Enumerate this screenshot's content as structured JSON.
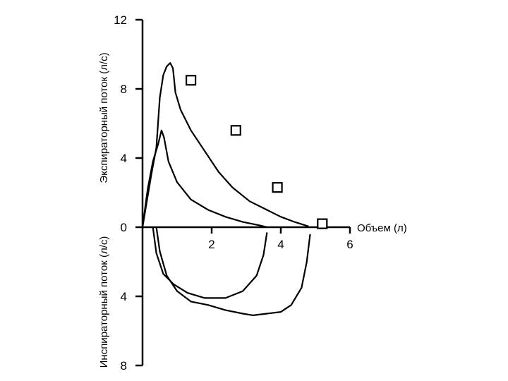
{
  "chart_data": {
    "type": "line",
    "x": {
      "label": "Объем (л)",
      "range": [
        0,
        6
      ],
      "ticks": [
        "2",
        "4",
        "6"
      ]
    },
    "y_top": {
      "label": "Экспираторный поток (л/с)",
      "range": [
        0,
        12
      ],
      "ticks": [
        "0",
        "4",
        "8",
        "12"
      ]
    },
    "y_bottom": {
      "label": "Инспираторный поток (л/с)",
      "range": [
        0,
        8
      ],
      "ticks": [
        "4",
        "8"
      ]
    },
    "series": [
      {
        "kind": "expiratory",
        "points": [
          [
            0,
            0
          ],
          [
            0.1,
            1.2
          ],
          [
            0.25,
            3.0
          ],
          [
            0.4,
            4.6
          ],
          [
            0.5,
            7.5
          ],
          [
            0.6,
            8.8
          ],
          [
            0.7,
            9.3
          ],
          [
            0.8,
            9.5
          ],
          [
            0.88,
            9.2
          ],
          [
            0.95,
            7.8
          ],
          [
            1.1,
            6.8
          ],
          [
            1.4,
            5.6
          ],
          [
            1.8,
            4.4
          ],
          [
            2.2,
            3.2
          ],
          [
            2.6,
            2.3
          ],
          [
            3.1,
            1.5
          ],
          [
            3.6,
            1.0
          ],
          [
            4.0,
            0.6
          ],
          [
            4.4,
            0.3
          ],
          [
            4.8,
            0.05
          ]
        ]
      },
      {
        "kind": "expiratory",
        "points": [
          [
            0,
            0
          ],
          [
            0.15,
            2.2
          ],
          [
            0.3,
            3.8
          ],
          [
            0.45,
            4.8
          ],
          [
            0.55,
            5.6
          ],
          [
            0.62,
            5.2
          ],
          [
            0.75,
            3.8
          ],
          [
            1.0,
            2.6
          ],
          [
            1.4,
            1.6
          ],
          [
            1.9,
            1.0
          ],
          [
            2.4,
            0.6
          ],
          [
            2.9,
            0.3
          ],
          [
            3.4,
            0.1
          ],
          [
            3.6,
            0
          ]
        ]
      },
      {
        "kind": "inspiratory",
        "points": [
          [
            0.3,
            0
          ],
          [
            0.4,
            1.5
          ],
          [
            0.6,
            2.7
          ],
          [
            0.9,
            3.3
          ],
          [
            1.3,
            3.8
          ],
          [
            1.8,
            4.1
          ],
          [
            2.4,
            4.1
          ],
          [
            2.9,
            3.7
          ],
          [
            3.3,
            2.8
          ],
          [
            3.5,
            1.6
          ],
          [
            3.6,
            0.3
          ]
        ]
      },
      {
        "kind": "inspiratory",
        "points": [
          [
            0.4,
            0
          ],
          [
            0.5,
            1.4
          ],
          [
            0.7,
            2.8
          ],
          [
            1.0,
            3.7
          ],
          [
            1.4,
            4.3
          ],
          [
            1.9,
            4.5
          ],
          [
            2.4,
            4.8
          ],
          [
            2.9,
            5.0
          ],
          [
            3.2,
            5.1
          ],
          [
            3.6,
            5.0
          ],
          [
            4.0,
            4.9
          ],
          [
            4.3,
            4.5
          ],
          [
            4.6,
            3.5
          ],
          [
            4.75,
            2.0
          ],
          [
            4.85,
            0.4
          ]
        ]
      }
    ],
    "markers": {
      "shape": "open-square",
      "points": [
        [
          1.4,
          8.5
        ],
        [
          2.7,
          5.6
        ],
        [
          3.9,
          2.3
        ],
        [
          5.2,
          0.2
        ]
      ]
    },
    "grid": false
  }
}
